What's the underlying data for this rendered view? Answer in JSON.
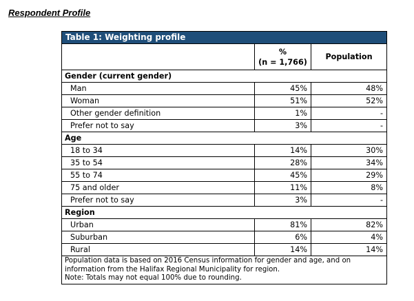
{
  "heading": "Respondent Profile",
  "table": {
    "title": "Table 1: Weighting profile",
    "col_pct": "%",
    "col_n": "(n = 1,766)",
    "col_pop": "Population",
    "sections": [
      {
        "label": "Gender (current gender)",
        "rows": [
          {
            "label": "Man",
            "pct": "45%",
            "pop": "48%"
          },
          {
            "label": "Woman",
            "pct": "51%",
            "pop": "52%"
          },
          {
            "label": "Other gender definition",
            "pct": "1%",
            "pop": "-"
          },
          {
            "label": "Prefer not to say",
            "pct": "3%",
            "pop": "-"
          }
        ]
      },
      {
        "label": "Age",
        "rows": [
          {
            "label": "18 to 34",
            "pct": "14%",
            "pop": "30%"
          },
          {
            "label": "35 to 54",
            "pct": "28%",
            "pop": "34%"
          },
          {
            "label": "55 to 74",
            "pct": "45%",
            "pop": "29%"
          },
          {
            "label": "75 and older",
            "pct": "11%",
            "pop": "8%"
          },
          {
            "label": "Prefer not to say",
            "pct": "3%",
            "pop": "-"
          }
        ]
      },
      {
        "label": "Region",
        "rows": [
          {
            "label": "Urban",
            "pct": "81%",
            "pop": "82%"
          },
          {
            "label": "Suburban",
            "pct": "6%",
            "pop": "4%"
          },
          {
            "label": "Rural",
            "pct": "14%",
            "pop": "14%"
          }
        ]
      }
    ],
    "footnote_1": "Population data is based on 2016 Census information for gender and age, and on information from the Halifax Regional Municipality for region.",
    "footnote_2": "Note: Totals may not equal 100% due to rounding."
  }
}
